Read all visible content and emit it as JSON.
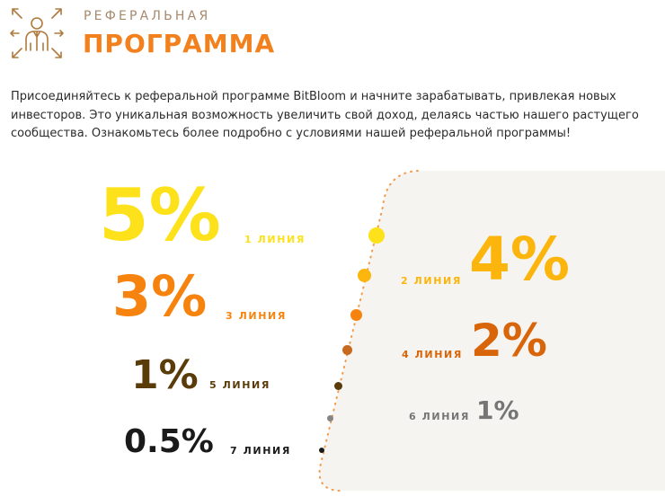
{
  "header": {
    "subtitle": "РЕФЕРАЛЬНАЯ",
    "title": "ПРОГРАММА",
    "logo_icon": "person-network-icon"
  },
  "intro": {
    "text": "Присоединяйтесь к реферальной программе BitBloom и начните зарабатывать, привлекая новых инвесторов. Это уникальная возможность увеличить свой доход, делаясь частью нашего растущего сообщества. Ознакомьтесь более подробно с условиями нашей реферальной программы!"
  },
  "levels": [
    {
      "percent": "5%",
      "label": "1 ЛИНИЯ",
      "color": "#fde11a"
    },
    {
      "percent": "4%",
      "label": "2 ЛИНИЯ",
      "color": "#fbb50d"
    },
    {
      "percent": "3%",
      "label": "3 ЛИНИЯ",
      "color": "#f7830f"
    },
    {
      "percent": "2%",
      "label": "4 ЛИНИЯ",
      "color": "#d86509"
    },
    {
      "percent": "1%",
      "label": "5 ЛИНИЯ",
      "color": "#5a3b0a"
    },
    {
      "percent": "1%",
      "label": "6 ЛИНИЯ",
      "color": "#757575"
    },
    {
      "percent": "0.5%",
      "label": "7 ЛИНИЯ",
      "color": "#1a1a1a"
    }
  ],
  "colors": {
    "accent": "#f2811d",
    "subtitle": "#a6896c",
    "panel": "#f6f4f0",
    "dotted_line": "#f29a4a"
  }
}
